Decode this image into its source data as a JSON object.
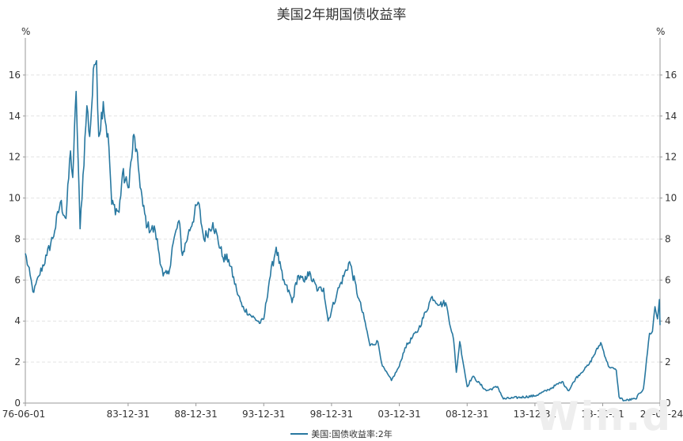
{
  "watermark": "Win.d",
  "chart_data": {
    "type": "line",
    "title": "美国2年期国债收益率",
    "yunit_left": "%",
    "yunit_right": "%",
    "ylim": [
      0,
      17.5
    ],
    "yticks": [
      0,
      2,
      4,
      6,
      8,
      10,
      12,
      14,
      16
    ],
    "grid": true,
    "legend_position": "bottom-center",
    "xlim": [
      "1976-06-01",
      "2023-03-24"
    ],
    "xtick_labels": [
      {
        "date": "1976-06-01",
        "label": "76-06-01"
      },
      {
        "date": "1983-12-31",
        "label": "83-12-31"
      },
      {
        "date": "1988-12-31",
        "label": "88-12-31"
      },
      {
        "date": "1993-12-31",
        "label": "93-12-31"
      },
      {
        "date": "1998-12-31",
        "label": "98-12-31"
      },
      {
        "date": "2003-12-31",
        "label": "03-12-31"
      },
      {
        "date": "2008-12-31",
        "label": "08-12-31"
      },
      {
        "date": "2013-12-31",
        "label": "13-12-31"
      },
      {
        "date": "2018-12-31",
        "label": "18-12-31"
      },
      {
        "date": "2023-03-24",
        "label": "23-03-24"
      }
    ],
    "series": [
      {
        "name": "美国:国债收益率:2年",
        "color": "#2878a0",
        "points": [
          [
            "1976-06-01",
            7.3
          ],
          [
            "1976-12-01",
            5.7
          ],
          [
            "1977-01-15",
            5.4
          ],
          [
            "1977-06-01",
            6.2
          ],
          [
            "1978-01-01",
            7.2
          ],
          [
            "1978-08-01",
            8.4
          ],
          [
            "1979-01-01",
            9.8
          ],
          [
            "1979-06-01",
            9.0
          ],
          [
            "1979-10-01",
            12.3
          ],
          [
            "1979-12-01",
            11.0
          ],
          [
            "1980-03-01",
            15.2
          ],
          [
            "1980-06-15",
            8.5
          ],
          [
            "1980-12-15",
            14.5
          ],
          [
            "1981-03-01",
            13.0
          ],
          [
            "1981-07-01",
            16.5
          ],
          [
            "1981-09-01",
            16.7
          ],
          [
            "1981-11-01",
            13.0
          ],
          [
            "1982-03-01",
            14.7
          ],
          [
            "1982-08-01",
            12.5
          ],
          [
            "1982-10-15",
            9.7
          ],
          [
            "1983-05-01",
            9.3
          ],
          [
            "1983-08-01",
            11.2
          ],
          [
            "1983-12-31",
            10.5
          ],
          [
            "1984-05-01",
            12.4
          ],
          [
            "1984-06-01",
            13.1
          ],
          [
            "1984-10-01",
            11.5
          ],
          [
            "1985-02-01",
            9.6
          ],
          [
            "1985-06-01",
            8.6
          ],
          [
            "1985-12-31",
            8.4
          ],
          [
            "1986-08-01",
            6.2
          ],
          [
            "1987-01-01",
            6.3
          ],
          [
            "1987-04-01",
            7.6
          ],
          [
            "1987-10-01",
            8.9
          ],
          [
            "1988-01-01",
            7.2
          ],
          [
            "1988-06-01",
            8.2
          ],
          [
            "1989-03-01",
            9.8
          ],
          [
            "1989-08-01",
            8.0
          ],
          [
            "1990-04-01",
            8.8
          ],
          [
            "1990-12-31",
            7.1
          ],
          [
            "1991-06-01",
            7.0
          ],
          [
            "1992-01-01",
            5.5
          ],
          [
            "1992-06-01",
            4.7
          ],
          [
            "1993-01-01",
            4.3
          ],
          [
            "1993-10-01",
            3.9
          ],
          [
            "1994-01-01",
            4.1
          ],
          [
            "1994-06-01",
            6.0
          ],
          [
            "1994-12-01",
            7.6
          ],
          [
            "1995-06-01",
            6.0
          ],
          [
            "1995-12-31",
            5.2
          ],
          [
            "1996-02-01",
            4.9
          ],
          [
            "1996-07-01",
            6.2
          ],
          [
            "1997-01-01",
            5.9
          ],
          [
            "1997-04-01",
            6.4
          ],
          [
            "1998-01-01",
            5.5
          ],
          [
            "1998-06-01",
            5.6
          ],
          [
            "1998-10-01",
            4.0
          ],
          [
            "1999-06-01",
            5.4
          ],
          [
            "2000-05-01",
            6.9
          ],
          [
            "2000-12-31",
            5.1
          ],
          [
            "2001-06-01",
            4.1
          ],
          [
            "2001-11-01",
            2.8
          ],
          [
            "2002-06-01",
            3.0
          ],
          [
            "2002-10-01",
            1.8
          ],
          [
            "2003-06-01",
            1.1
          ],
          [
            "2003-12-31",
            1.8
          ],
          [
            "2004-06-01",
            2.7
          ],
          [
            "2005-06-01",
            3.6
          ],
          [
            "2006-06-01",
            5.2
          ],
          [
            "2006-12-31",
            4.8
          ],
          [
            "2007-06-01",
            4.9
          ],
          [
            "2007-12-31",
            3.1
          ],
          [
            "2008-03-15",
            1.5
          ],
          [
            "2008-06-15",
            3.0
          ],
          [
            "2008-12-31",
            0.8
          ],
          [
            "2009-06-01",
            1.3
          ],
          [
            "2010-06-01",
            0.6
          ],
          [
            "2011-04-01",
            0.8
          ],
          [
            "2011-09-01",
            0.2
          ],
          [
            "2012-06-01",
            0.25
          ],
          [
            "2013-12-31",
            0.35
          ],
          [
            "2014-12-31",
            0.65
          ],
          [
            "2015-12-31",
            1.05
          ],
          [
            "2016-06-30",
            0.6
          ],
          [
            "2016-12-31",
            1.2
          ],
          [
            "2017-12-31",
            1.9
          ],
          [
            "2018-11-08",
            2.95
          ],
          [
            "2019-06-01",
            1.8
          ],
          [
            "2019-12-31",
            1.6
          ],
          [
            "2020-03-15",
            0.3
          ],
          [
            "2020-08-01",
            0.12
          ],
          [
            "2021-06-01",
            0.2
          ],
          [
            "2021-12-31",
            0.7
          ],
          [
            "2022-06-14",
            3.4
          ],
          [
            "2022-09-01",
            3.5
          ],
          [
            "2022-11-07",
            4.7
          ],
          [
            "2023-01-15",
            4.1
          ],
          [
            "2023-03-08",
            5.05
          ],
          [
            "2023-03-24",
            3.8
          ]
        ]
      }
    ]
  }
}
